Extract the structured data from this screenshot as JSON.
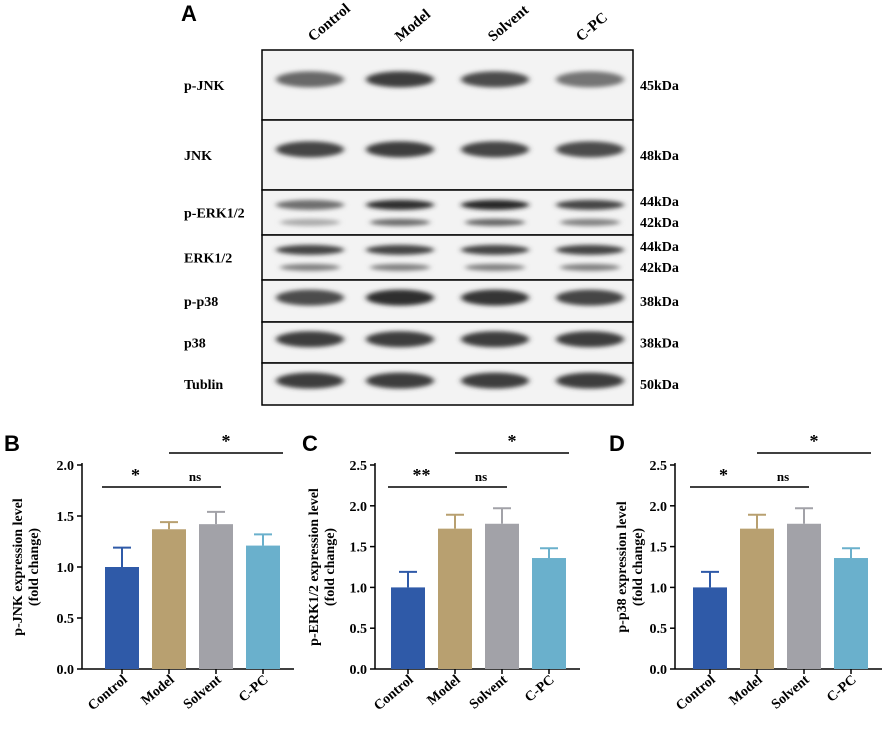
{
  "panels": {
    "A": "A",
    "B": "B",
    "C": "C",
    "D": "D"
  },
  "blot": {
    "lanes": [
      "Control",
      "Model",
      "Solvent",
      "C-PC"
    ],
    "rows": [
      {
        "label": "p-JNK",
        "kda": [
          "45kDa"
        ],
        "intensity": [
          0.55,
          0.85,
          0.75,
          0.45
        ]
      },
      {
        "label": "JNK",
        "kda": [
          "48kDa"
        ],
        "intensity": [
          0.8,
          0.85,
          0.8,
          0.75
        ]
      },
      {
        "label": "p-ERK1/2",
        "kda": [
          "44kDa",
          "42kDa"
        ],
        "intensity": [
          0.5,
          0.95,
          1.0,
          0.8
        ]
      },
      {
        "label": "ERK1/2",
        "kda": [
          "44kDa",
          "42kDa"
        ],
        "intensity": [
          0.8,
          0.8,
          0.8,
          0.8
        ]
      },
      {
        "label": "p-p38",
        "kda": [
          "38kDa"
        ],
        "intensity": [
          0.75,
          0.95,
          0.9,
          0.8
        ]
      },
      {
        "label": "p38",
        "kda": [
          "38kDa"
        ],
        "intensity": [
          0.85,
          0.85,
          0.85,
          0.85
        ]
      },
      {
        "label": "Tublin",
        "kda": [
          "50kDa"
        ],
        "intensity": [
          0.85,
          0.85,
          0.85,
          0.85
        ]
      }
    ]
  },
  "colors": {
    "Control": "#2f5aa8",
    "Model": "#b8a070",
    "Solvent": "#a2a2a8",
    "C-PC": "#6ab0cc"
  },
  "chart_data": [
    {
      "type": "bar",
      "panel": "B",
      "categories": [
        "Control",
        "Model",
        "Solvent",
        "C-PC"
      ],
      "values": [
        1.0,
        1.37,
        1.42,
        1.21
      ],
      "errors": [
        0.19,
        0.07,
        0.12,
        0.11
      ],
      "ylabel_lines": [
        "p-JNK expression level",
        "(fold change)"
      ],
      "ylim": [
        0,
        2.0
      ],
      "yticks": [
        "0.0",
        "0.5",
        "1.0",
        "1.5",
        "2.0"
      ],
      "significance": [
        {
          "from": 0,
          "to": 1,
          "label": "*"
        },
        {
          "from": 1,
          "to": 2,
          "label": "ns"
        },
        {
          "from": 1,
          "to": 3,
          "label": "*"
        }
      ]
    },
    {
      "type": "bar",
      "panel": "C",
      "categories": [
        "Control",
        "Model",
        "Solvent",
        "C-PC"
      ],
      "values": [
        1.0,
        1.72,
        1.78,
        1.36
      ],
      "errors": [
        0.19,
        0.17,
        0.19,
        0.12
      ],
      "ylabel_lines": [
        "p-ERK1/2 expression level",
        "(fold change)"
      ],
      "ylim": [
        0,
        2.5
      ],
      "yticks": [
        "0.0",
        "0.5",
        "1.0",
        "1.5",
        "2.0",
        "2.5"
      ],
      "significance": [
        {
          "from": 0,
          "to": 1,
          "label": "**"
        },
        {
          "from": 1,
          "to": 2,
          "label": "ns"
        },
        {
          "from": 1,
          "to": 3,
          "label": "*"
        }
      ]
    },
    {
      "type": "bar",
      "panel": "D",
      "categories": [
        "Control",
        "Model",
        "Solvent",
        "C-PC"
      ],
      "values": [
        1.0,
        1.72,
        1.78,
        1.36
      ],
      "errors": [
        0.19,
        0.17,
        0.19,
        0.12
      ],
      "ylabel_lines": [
        "p-p38 expression level",
        "(fold change)"
      ],
      "ylim": [
        0,
        2.5
      ],
      "yticks": [
        "0.0",
        "0.5",
        "1.0",
        "1.5",
        "2.0",
        "2.5"
      ],
      "significance": [
        {
          "from": 0,
          "to": 1,
          "label": "*"
        },
        {
          "from": 1,
          "to": 2,
          "label": "ns"
        },
        {
          "from": 1,
          "to": 3,
          "label": "*"
        }
      ]
    }
  ]
}
